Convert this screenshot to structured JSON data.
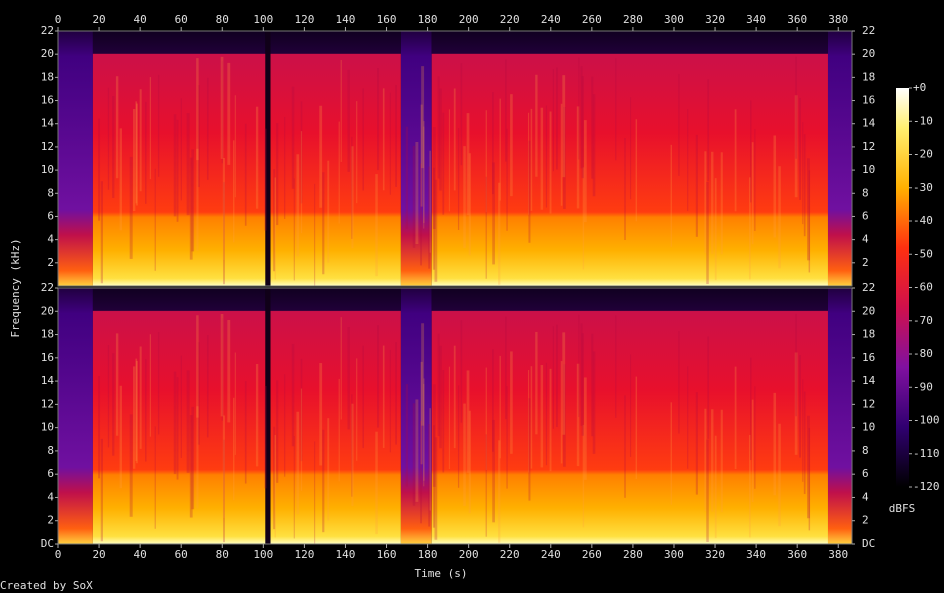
{
  "chart_data": {
    "type": "spectrogram",
    "x_label": "Time (s)",
    "y_label": "Frequency (kHz)",
    "xlim": [
      0,
      386.7
    ],
    "xticks": [
      0,
      20,
      40,
      60,
      80,
      100,
      120,
      140,
      160,
      180,
      200,
      220,
      240,
      260,
      280,
      300,
      320,
      340,
      360,
      380
    ],
    "channels": [
      {
        "ylim": [
          0,
          22
        ],
        "yticks": [
          2,
          4,
          6,
          8,
          10,
          12,
          14,
          16,
          18,
          20,
          22
        ]
      },
      {
        "ylim": [
          0,
          22
        ],
        "yticks": [
          {
            "value": 0,
            "label": "DC"
          },
          2,
          4,
          6,
          8,
          10,
          12,
          14,
          16,
          18,
          20,
          22
        ]
      }
    ],
    "colorbar": {
      "label": "dBFS",
      "lim": [
        -120,
        0
      ],
      "ticks": [
        {
          "value": 0,
          "label": "+0"
        },
        -10,
        -20,
        -30,
        -40,
        -50,
        -60,
        -70,
        -80,
        -90,
        -100,
        -110,
        -120
      ]
    },
    "footer": "Created by SoX"
  }
}
